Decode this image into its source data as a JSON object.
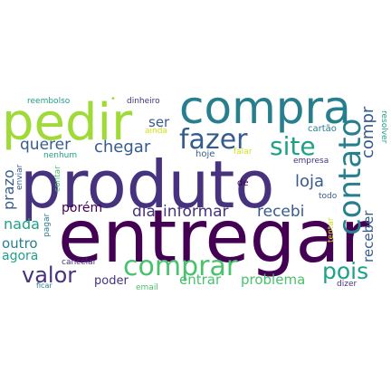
{
  "words": {
    "produto": "produto",
    "entregar": "entregar",
    "pedir": "pedir",
    "compra": "compra",
    "fazer": "fazer",
    "site": "site",
    "contato": "contato",
    "comprar": "comprar",
    "valor": "valor",
    "pois": "pois",
    "informar": "informar",
    "dia": "dia",
    "recebi": "recebi",
    "loja": "loja",
    "chegar": "chegar",
    "querer": "querer",
    "prazo": "prazo",
    "nada": "nada",
    "outro": "outro",
    "agora": "agora",
    "porem": "porém",
    "entrar": "entrar",
    "problema": "problema",
    "poder": "poder",
    "receber": "receber",
    "compr": "compr",
    "ser": "ser",
    "reembolso": "reembolso",
    "dinheiro": "dinheiro",
    "cartao": "cartão",
    "resolver": "resolver",
    "ainda": "ainda",
    "nenhum": "nenhum",
    "hoje": "hoje",
    "falar": "falar",
    "empresa": "empresa",
    "todo": "todo",
    "de": "de",
    "enviar": "enviar",
    "contar": "contar",
    "pagar": "pagar",
    "tentar": "tentar",
    "cancelar": "cancelar",
    "ficar": "ficar",
    "email": "email",
    "dizer": "dizer",
    "dot": "•"
  },
  "colors": {
    "dark_purple": "#440154",
    "indigo": "#46327e",
    "blue": "#365c8d",
    "teal_blue": "#277f8e",
    "teal": "#1fa187",
    "green": "#4ac16d",
    "lime": "#a0da39",
    "yellow": "#d2e21b"
  }
}
